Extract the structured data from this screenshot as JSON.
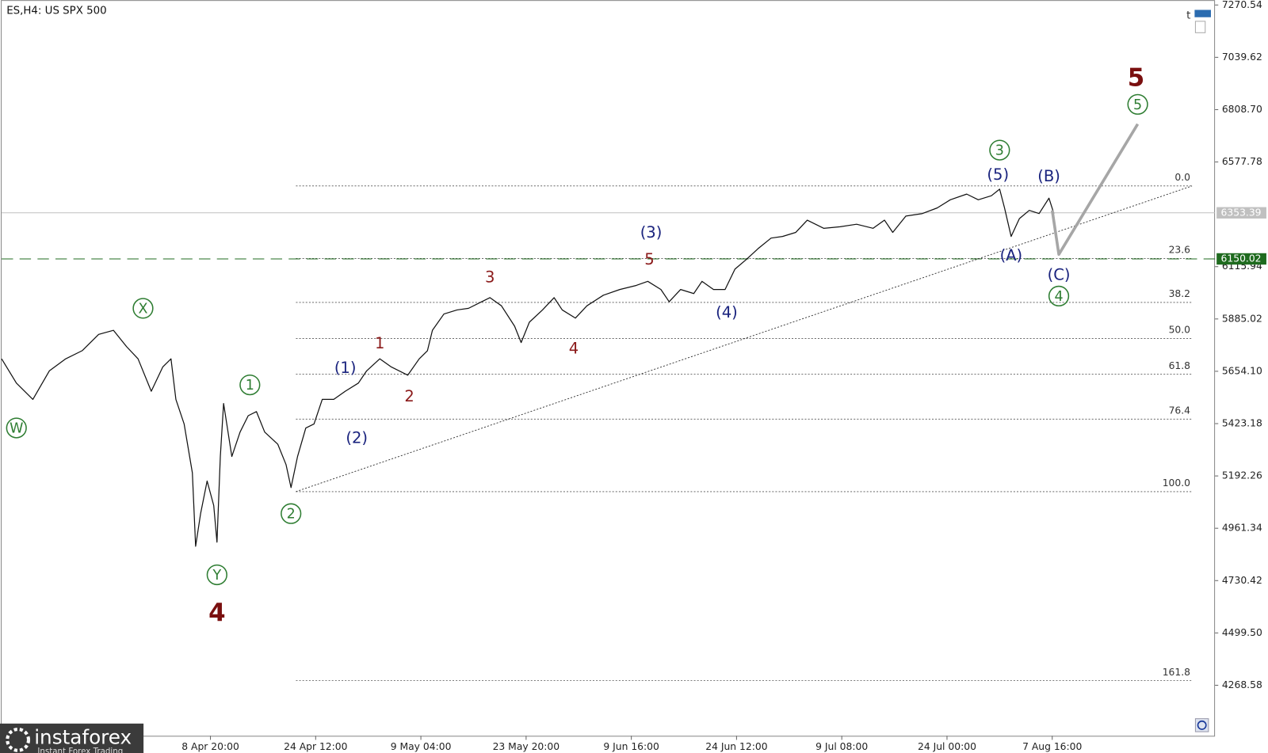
{
  "chart_data": {
    "type": "line",
    "title": "ES,H4:  US SPX 500",
    "xlim": [
      0,
      738
    ],
    "ylim": [
      4045.6,
      7292.1
    ],
    "xticks": [
      {
        "value": 127,
        "label": "8 Apr 20:00"
      },
      {
        "value": 191,
        "label": "24 Apr 12:00"
      },
      {
        "value": 255,
        "label": "9 May 04:00"
      },
      {
        "value": 319,
        "label": "23 May 20:00"
      },
      {
        "value": 383,
        "label": "9 Jun 16:00"
      },
      {
        "value": 447,
        "label": "24 Jun 12:00"
      },
      {
        "value": 511,
        "label": "9 Jul 08:00"
      },
      {
        "value": 575,
        "label": "24 Jul 00:00"
      },
      {
        "value": 639,
        "label": "7 Aug 16:00"
      }
    ],
    "yticks": [
      7270.54,
      7039.62,
      {
        "value": 6808.7,
        "label": "6808.70"
      },
      6577.78,
      6115.94,
      5885.02,
      {
        "value": 5654.1,
        "label": "5654.10"
      },
      5423.18,
      5192.26,
      4961.34,
      4730.42,
      {
        "value": 4499.5,
        "label": "4499.50"
      },
      4268.58
    ],
    "x": [
      0,
      9,
      19,
      29,
      39,
      49,
      59,
      68,
      76,
      83,
      91,
      98,
      103,
      106,
      111,
      116,
      118,
      121,
      125,
      129,
      131,
      133,
      135,
      140,
      145,
      150,
      155,
      160,
      168,
      173,
      176,
      180,
      185,
      190,
      195,
      202,
      209,
      217,
      222,
      230,
      237,
      247,
      254,
      259,
      262,
      269,
      277,
      284,
      292,
      297,
      304,
      312,
      316,
      321,
      329,
      336,
      341,
      349,
      356,
      366,
      376,
      386,
      393,
      401,
      406,
      413,
      421,
      426,
      433,
      440,
      446,
      453,
      460,
      468,
      475,
      483,
      490,
      500,
      510,
      520,
      530,
      537,
      542,
      550,
      560,
      569,
      577,
      587,
      594,
      602,
      607,
      610,
      614,
      619,
      625,
      631,
      637,
      640
    ],
    "series": [
      {
        "color": "#111111",
        "values": [
          5709,
          5602,
          5530,
          5656,
          5709,
          5745,
          5817,
          5835,
          5763,
          5709,
          5566,
          5673,
          5709,
          5530,
          5422,
          5206,
          4882,
          5026,
          5170,
          5062,
          4900,
          5278,
          5512,
          5278,
          5386,
          5458,
          5476,
          5386,
          5332,
          5242,
          5141,
          5278,
          5404,
          5422,
          5530,
          5530,
          5566,
          5602,
          5656,
          5709,
          5673,
          5637,
          5709,
          5745,
          5835,
          5907,
          5925,
          5932,
          5961,
          5979,
          5943,
          5853,
          5781,
          5871,
          5925,
          5979,
          5925,
          5889,
          5943,
          5990,
          6015,
          6033,
          6051,
          6015,
          5961,
          6015,
          5997,
          6051,
          6015,
          6015,
          6105,
          6148,
          6195,
          6242,
          6249,
          6267,
          6321,
          6285,
          6292,
          6303,
          6285,
          6321,
          6267,
          6339,
          6350,
          6375,
          6411,
          6436,
          6411,
          6429,
          6458,
          6375,
          6249,
          6328,
          6364,
          6350,
          6418,
          6350
        ]
      }
    ],
    "current_price": {
      "value": 6353.39,
      "color": "#c0c0c0"
    },
    "level": {
      "value": 6150.02,
      "color": "#1f6b1f"
    },
    "fib_x": [
      179,
      724
    ],
    "fib_levels": [
      {
        "value": 6472,
        "label": "0.0"
      },
      {
        "value": 6152,
        "label": "23.6"
      },
      {
        "value": 5958,
        "label": "38.2"
      },
      {
        "value": 5799,
        "label": "50.0"
      },
      {
        "value": 5641,
        "label": "61.8"
      },
      {
        "value": 5443,
        "label": "76.4"
      },
      {
        "value": 5123,
        "label": "100.0"
      },
      {
        "value": 4289,
        "label": "161.8"
      }
    ],
    "trendline": {
      "x": [
        179,
        724
      ],
      "values": [
        5123,
        6472
      ],
      "color": "#333333"
    },
    "projection": {
      "x": [
        639,
        643,
        691
      ],
      "values": [
        6364,
        6170,
        6745
      ],
      "color": "#a6a6a6"
    },
    "wave_colors": {
      "circled": "#2e7d32",
      "bracketed": "#1a237e",
      "minor": "#8b1a1a",
      "major": "#7a0f0f"
    },
    "waves": [
      {
        "text": "W",
        "kind": "circled",
        "x": 9,
        "y": 5404
      },
      {
        "text": "X",
        "kind": "circled",
        "x": 86,
        "y": 5932
      },
      {
        "text": "Y",
        "kind": "circled",
        "x": 131,
        "y": 4756
      },
      {
        "text": "1",
        "kind": "circled",
        "x": 151,
        "y": 5594
      },
      {
        "text": "2",
        "kind": "circled",
        "x": 176,
        "y": 5026
      },
      {
        "text": "3",
        "kind": "circled",
        "x": 607,
        "y": 6630
      },
      {
        "text": "4",
        "kind": "circled",
        "x": 643,
        "y": 5986
      },
      {
        "text": "5",
        "kind": "circled",
        "x": 691,
        "y": 6832
      },
      {
        "text": "(1)",
        "kind": "bracketed",
        "x": 209,
        "y": 5670
      },
      {
        "text": "(2)",
        "kind": "bracketed",
        "x": 216,
        "y": 5360
      },
      {
        "text": "(3)",
        "kind": "bracketed",
        "x": 395,
        "y": 6267
      },
      {
        "text": "(4)",
        "kind": "bracketed",
        "x": 441,
        "y": 5914
      },
      {
        "text": "(5)",
        "kind": "bracketed",
        "x": 606,
        "y": 6522
      },
      {
        "text": "(A)",
        "kind": "bracketed",
        "x": 614,
        "y": 6166
      },
      {
        "text": "(B)",
        "kind": "bracketed",
        "x": 637,
        "y": 6515
      },
      {
        "text": "(C)",
        "kind": "bracketed",
        "x": 643,
        "y": 6080
      },
      {
        "text": "1",
        "kind": "minor",
        "x": 230,
        "y": 5778
      },
      {
        "text": "2",
        "kind": "minor",
        "x": 248,
        "y": 5544
      },
      {
        "text": "3",
        "kind": "minor",
        "x": 297,
        "y": 6069
      },
      {
        "text": "4",
        "kind": "minor",
        "x": 348,
        "y": 5756
      },
      {
        "text": "5",
        "kind": "minor",
        "x": 394,
        "y": 6148
      },
      {
        "text": "4",
        "kind": "major",
        "x": 131,
        "y": 4587
      },
      {
        "text": "5",
        "kind": "major",
        "x": 690,
        "y": 6947
      }
    ]
  },
  "branding": {
    "name": "instaforex",
    "tagline": "Instant Forex Trading"
  },
  "toolbar": {
    "label": "t"
  }
}
